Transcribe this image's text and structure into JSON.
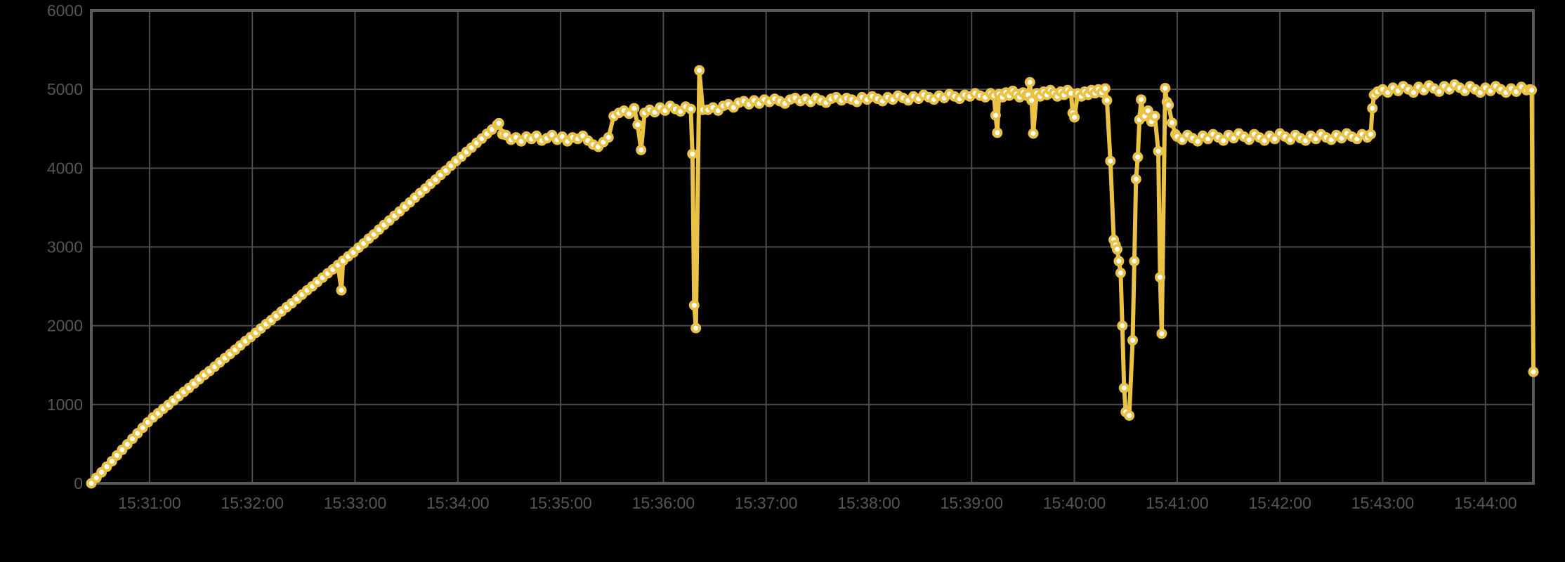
{
  "chart_data": {
    "type": "line",
    "title": "",
    "legend": [],
    "grid": "on",
    "background_color": "#000000",
    "colors": {
      "series": "#E9C246",
      "marker_fill": "#FFFFFF",
      "grid": "#4C4C4C",
      "border": "#5A5A5A",
      "tick_label": "#565656"
    },
    "x_axis": {
      "unit": "time (HH:MM:SS)",
      "t_min": 26,
      "t_max": 868,
      "note_t_is": "seconds after 15:30:00",
      "ticks": [
        {
          "t": 60,
          "label": "15:31:00"
        },
        {
          "t": 120,
          "label": "15:32:00"
        },
        {
          "t": 180,
          "label": "15:33:00"
        },
        {
          "t": 240,
          "label": "15:34:00"
        },
        {
          "t": 300,
          "label": "15:35:00"
        },
        {
          "t": 360,
          "label": "15:36:00"
        },
        {
          "t": 420,
          "label": "15:37:00"
        },
        {
          "t": 480,
          "label": "15:38:00"
        },
        {
          "t": 540,
          "label": "15:39:00"
        },
        {
          "t": 600,
          "label": "15:40:00"
        },
        {
          "t": 660,
          "label": "15:41:00"
        },
        {
          "t": 720,
          "label": "15:42:00"
        },
        {
          "t": 780,
          "label": "15:43:00"
        },
        {
          "t": 840,
          "label": "15:44:00"
        }
      ]
    },
    "y_axis": {
      "min": 0,
      "max": 6000,
      "ticks": [
        {
          "v": 0,
          "label": "0"
        },
        {
          "v": 1000,
          "label": "1000"
        },
        {
          "v": 2000,
          "label": "2000"
        },
        {
          "v": 3000,
          "label": "3000"
        },
        {
          "v": 4000,
          "label": "4000"
        },
        {
          "v": 5000,
          "label": "5000"
        },
        {
          "v": 6000,
          "label": "6000"
        }
      ]
    },
    "points": [
      [
        26,
        0
      ],
      [
        29,
        70
      ],
      [
        32,
        140
      ],
      [
        35,
        210
      ],
      [
        38,
        280
      ],
      [
        41,
        355
      ],
      [
        44,
        425
      ],
      [
        47,
        495
      ],
      [
        50,
        565
      ],
      [
        53,
        635
      ],
      [
        56,
        705
      ],
      [
        59,
        775
      ],
      [
        62,
        835
      ],
      [
        65,
        890
      ],
      [
        68,
        945
      ],
      [
        71,
        995
      ],
      [
        74,
        1050
      ],
      [
        77,
        1105
      ],
      [
        80,
        1160
      ],
      [
        83,
        1210
      ],
      [
        86,
        1265
      ],
      [
        89,
        1320
      ],
      [
        92,
        1375
      ],
      [
        95,
        1425
      ],
      [
        98,
        1480
      ],
      [
        101,
        1535
      ],
      [
        104,
        1590
      ],
      [
        107,
        1640
      ],
      [
        110,
        1695
      ],
      [
        113,
        1750
      ],
      [
        116,
        1805
      ],
      [
        119,
        1855
      ],
      [
        122,
        1910
      ],
      [
        125,
        1965
      ],
      [
        128,
        2020
      ],
      [
        131,
        2070
      ],
      [
        134,
        2125
      ],
      [
        137,
        2180
      ],
      [
        140,
        2235
      ],
      [
        143,
        2285
      ],
      [
        146,
        2340
      ],
      [
        149,
        2395
      ],
      [
        152,
        2450
      ],
      [
        155,
        2500
      ],
      [
        158,
        2555
      ],
      [
        161,
        2610
      ],
      [
        164,
        2665
      ],
      [
        167,
        2715
      ],
      [
        170,
        2770
      ],
      [
        172,
        2450
      ],
      [
        173,
        2825
      ],
      [
        176,
        2880
      ],
      [
        179,
        2930
      ],
      [
        182,
        2990
      ],
      [
        185,
        3045
      ],
      [
        188,
        3105
      ],
      [
        191,
        3160
      ],
      [
        194,
        3220
      ],
      [
        197,
        3280
      ],
      [
        200,
        3335
      ],
      [
        203,
        3395
      ],
      [
        206,
        3450
      ],
      [
        209,
        3510
      ],
      [
        212,
        3565
      ],
      [
        215,
        3625
      ],
      [
        218,
        3685
      ],
      [
        221,
        3740
      ],
      [
        224,
        3800
      ],
      [
        227,
        3855
      ],
      [
        230,
        3915
      ],
      [
        233,
        3970
      ],
      [
        236,
        4030
      ],
      [
        239,
        4090
      ],
      [
        242,
        4145
      ],
      [
        245,
        4205
      ],
      [
        248,
        4260
      ],
      [
        251,
        4320
      ],
      [
        254,
        4375
      ],
      [
        257,
        4435
      ],
      [
        260,
        4490
      ],
      [
        263,
        4550
      ],
      [
        264,
        4570
      ],
      [
        266,
        4430
      ],
      [
        268,
        4420
      ],
      [
        271,
        4360
      ],
      [
        274,
        4390
      ],
      [
        277,
        4340
      ],
      [
        280,
        4400
      ],
      [
        283,
        4370
      ],
      [
        286,
        4410
      ],
      [
        289,
        4350
      ],
      [
        292,
        4380
      ],
      [
        295,
        4420
      ],
      [
        298,
        4360
      ],
      [
        301,
        4400
      ],
      [
        304,
        4340
      ],
      [
        307,
        4390
      ],
      [
        310,
        4370
      ],
      [
        313,
        4410
      ],
      [
        316,
        4350
      ],
      [
        319,
        4300
      ],
      [
        322,
        4270
      ],
      [
        325,
        4330
      ],
      [
        328,
        4390
      ],
      [
        331,
        4660
      ],
      [
        334,
        4700
      ],
      [
        337,
        4730
      ],
      [
        340,
        4690
      ],
      [
        343,
        4760
      ],
      [
        345,
        4550
      ],
      [
        347,
        4230
      ],
      [
        349,
        4700
      ],
      [
        352,
        4740
      ],
      [
        355,
        4710
      ],
      [
        358,
        4770
      ],
      [
        361,
        4730
      ],
      [
        364,
        4790
      ],
      [
        367,
        4750
      ],
      [
        370,
        4720
      ],
      [
        373,
        4780
      ],
      [
        376,
        4750
      ],
      [
        377,
        4180
      ],
      [
        378,
        2260
      ],
      [
        379,
        1970
      ],
      [
        381,
        5240
      ],
      [
        383,
        4740
      ],
      [
        386,
        4740
      ],
      [
        389,
        4770
      ],
      [
        392,
        4730
      ],
      [
        395,
        4790
      ],
      [
        398,
        4810
      ],
      [
        401,
        4770
      ],
      [
        404,
        4830
      ],
      [
        407,
        4850
      ],
      [
        410,
        4810
      ],
      [
        413,
        4860
      ],
      [
        416,
        4820
      ],
      [
        419,
        4870
      ],
      [
        422,
        4840
      ],
      [
        425,
        4880
      ],
      [
        428,
        4850
      ],
      [
        431,
        4820
      ],
      [
        434,
        4870
      ],
      [
        437,
        4890
      ],
      [
        440,
        4850
      ],
      [
        443,
        4880
      ],
      [
        446,
        4840
      ],
      [
        449,
        4890
      ],
      [
        452,
        4860
      ],
      [
        455,
        4830
      ],
      [
        458,
        4880
      ],
      [
        461,
        4900
      ],
      [
        464,
        4860
      ],
      [
        467,
        4890
      ],
      [
        470,
        4870
      ],
      [
        473,
        4840
      ],
      [
        476,
        4900
      ],
      [
        479,
        4870
      ],
      [
        482,
        4910
      ],
      [
        485,
        4880
      ],
      [
        488,
        4850
      ],
      [
        491,
        4900
      ],
      [
        494,
        4870
      ],
      [
        497,
        4920
      ],
      [
        500,
        4890
      ],
      [
        503,
        4860
      ],
      [
        506,
        4910
      ],
      [
        509,
        4880
      ],
      [
        512,
        4930
      ],
      [
        515,
        4900
      ],
      [
        518,
        4870
      ],
      [
        521,
        4920
      ],
      [
        524,
        4890
      ],
      [
        527,
        4940
      ],
      [
        530,
        4910
      ],
      [
        533,
        4880
      ],
      [
        536,
        4930
      ],
      [
        539,
        4910
      ],
      [
        542,
        4950
      ],
      [
        545,
        4920
      ],
      [
        548,
        4900
      ],
      [
        551,
        4950
      ],
      [
        553,
        4920
      ],
      [
        554,
        4670
      ],
      [
        555,
        4450
      ],
      [
        556,
        4940
      ],
      [
        558,
        4900
      ],
      [
        560,
        4960
      ],
      [
        562,
        4920
      ],
      [
        564,
        4980
      ],
      [
        566,
        4940
      ],
      [
        568,
        4900
      ],
      [
        570,
        4960
      ],
      [
        572,
        4920
      ],
      [
        573,
        4930
      ],
      [
        574,
        5090
      ],
      [
        575,
        4860
      ],
      [
        576,
        4440
      ],
      [
        578,
        4950
      ],
      [
        580,
        4910
      ],
      [
        582,
        4970
      ],
      [
        584,
        4930
      ],
      [
        586,
        4990
      ],
      [
        588,
        4950
      ],
      [
        590,
        4910
      ],
      [
        592,
        4970
      ],
      [
        594,
        4930
      ],
      [
        596,
        4990
      ],
      [
        598,
        4950
      ],
      [
        599,
        4700
      ],
      [
        600,
        4645
      ],
      [
        602,
        4950
      ],
      [
        604,
        4910
      ],
      [
        606,
        4970
      ],
      [
        608,
        4930
      ],
      [
        610,
        4990
      ],
      [
        612,
        4950
      ],
      [
        614,
        5000
      ],
      [
        616,
        4960
      ],
      [
        618,
        5010
      ],
      [
        619,
        4860
      ],
      [
        621,
        4090
      ],
      [
        623,
        3090
      ],
      [
        624,
        3025
      ],
      [
        625,
        2970
      ],
      [
        626,
        2820
      ],
      [
        627,
        2670
      ],
      [
        628,
        2000
      ],
      [
        629,
        1210
      ],
      [
        630,
        905
      ],
      [
        632,
        860
      ],
      [
        634,
        1815
      ],
      [
        635,
        2820
      ],
      [
        636,
        3860
      ],
      [
        637,
        4140
      ],
      [
        638,
        4615
      ],
      [
        639,
        4870
      ],
      [
        640,
        4690
      ],
      [
        641,
        4660
      ],
      [
        643,
        4730
      ],
      [
        645,
        4590
      ],
      [
        647,
        4660
      ],
      [
        649,
        4215
      ],
      [
        650,
        2615
      ],
      [
        651,
        1900
      ],
      [
        653,
        5015
      ],
      [
        654,
        4840
      ],
      [
        655,
        4800
      ],
      [
        657,
        4575
      ],
      [
        659,
        4430
      ],
      [
        660,
        4400
      ],
      [
        663,
        4360
      ],
      [
        666,
        4420
      ],
      [
        669,
        4380
      ],
      [
        672,
        4340
      ],
      [
        675,
        4410
      ],
      [
        678,
        4370
      ],
      [
        681,
        4430
      ],
      [
        684,
        4390
      ],
      [
        687,
        4350
      ],
      [
        690,
        4420
      ],
      [
        693,
        4380
      ],
      [
        696,
        4440
      ],
      [
        699,
        4400
      ],
      [
        702,
        4360
      ],
      [
        705,
        4430
      ],
      [
        708,
        4390
      ],
      [
        711,
        4350
      ],
      [
        714,
        4410
      ],
      [
        717,
        4370
      ],
      [
        720,
        4440
      ],
      [
        723,
        4400
      ],
      [
        726,
        4360
      ],
      [
        729,
        4420
      ],
      [
        732,
        4380
      ],
      [
        735,
        4350
      ],
      [
        738,
        4410
      ],
      [
        741,
        4370
      ],
      [
        744,
        4430
      ],
      [
        747,
        4390
      ],
      [
        750,
        4360
      ],
      [
        753,
        4420
      ],
      [
        756,
        4380
      ],
      [
        759,
        4440
      ],
      [
        762,
        4400
      ],
      [
        765,
        4370
      ],
      [
        768,
        4430
      ],
      [
        771,
        4390
      ],
      [
        773,
        4430
      ],
      [
        774,
        4760
      ],
      [
        775,
        4930
      ],
      [
        777,
        4970
      ],
      [
        780,
        5000
      ],
      [
        783,
        4960
      ],
      [
        786,
        5020
      ],
      [
        789,
        4980
      ],
      [
        792,
        5040
      ],
      [
        795,
        5000
      ],
      [
        798,
        4960
      ],
      [
        801,
        5030
      ],
      [
        804,
        4990
      ],
      [
        807,
        5050
      ],
      [
        810,
        5010
      ],
      [
        813,
        4970
      ],
      [
        816,
        5040
      ],
      [
        819,
        5000
      ],
      [
        822,
        5060
      ],
      [
        825,
        5020
      ],
      [
        828,
        4980
      ],
      [
        831,
        5040
      ],
      [
        834,
        5000
      ],
      [
        837,
        4960
      ],
      [
        840,
        5020
      ],
      [
        843,
        4980
      ],
      [
        846,
        5040
      ],
      [
        849,
        5000
      ],
      [
        852,
        4960
      ],
      [
        855,
        5010
      ],
      [
        858,
        4970
      ],
      [
        861,
        5030
      ],
      [
        864,
        4990
      ],
      [
        866,
        5000
      ],
      [
        867,
        4990
      ],
      [
        868,
        1415
      ]
    ]
  }
}
